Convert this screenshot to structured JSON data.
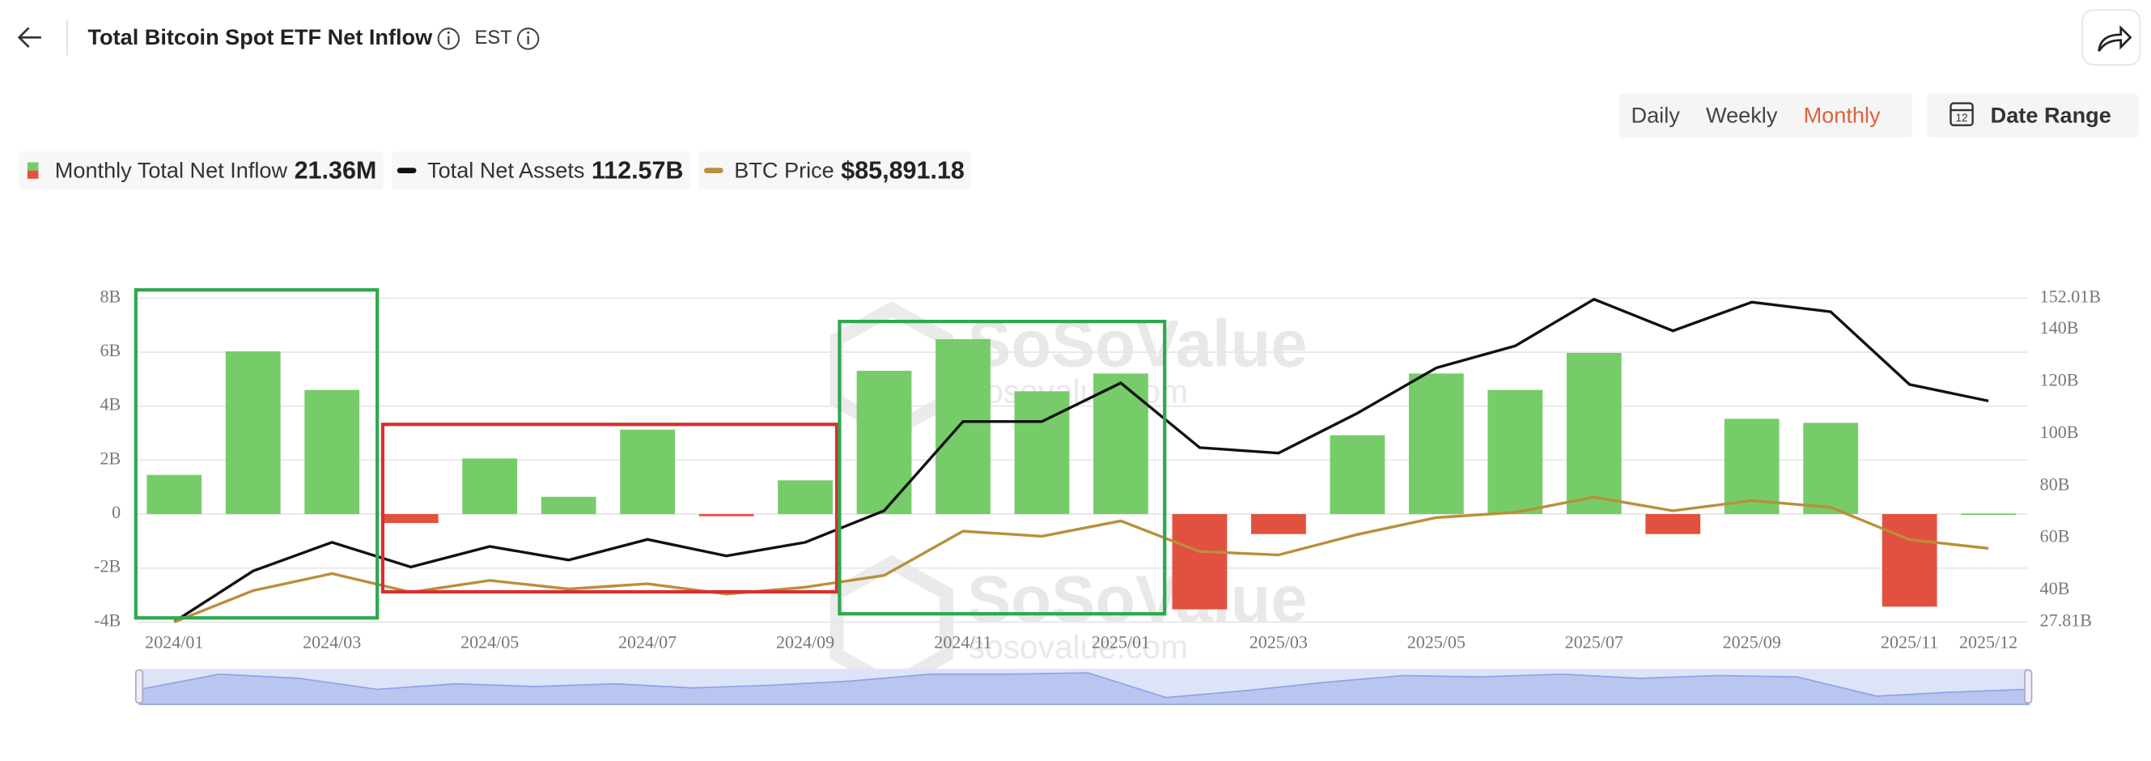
{
  "header": {
    "title": "Total Bitcoin Spot ETF Net Inflow",
    "timezone": "EST"
  },
  "controls": {
    "periods": [
      "Daily",
      "Weekly",
      "Monthly"
    ],
    "active_period": 2,
    "date_range": "Date Range"
  },
  "watermark": {
    "brand": "SoSoValue",
    "url": "sosovalue.com"
  },
  "chart_data": {
    "type": "combo",
    "categories": [
      "2024/01",
      null,
      "2024/03",
      null,
      "2024/05",
      null,
      "2024/07",
      null,
      "2024/09",
      null,
      "2024/11",
      null,
      "2025/01",
      null,
      "2025/03",
      null,
      "2025/05",
      null,
      "2025/07",
      null,
      "2025/09",
      null,
      "2025/11",
      "2025/12"
    ],
    "legend_values": [
      "21.36M",
      "112.57B",
      "$85,891.18"
    ],
    "series": [
      {
        "name": "Monthly Total Net Inflow",
        "type": "bar",
        "color": "#77cc6a",
        "negative_color": "#e2513f",
        "values": [
          1.45,
          6.03,
          4.6,
          -0.33,
          2.06,
          0.64,
          3.13,
          -0.08,
          1.25,
          5.31,
          6.48,
          4.55,
          5.21,
          -3.53,
          -0.74,
          2.92,
          5.21,
          4.6,
          5.97,
          -0.74,
          3.53,
          3.38,
          -3.43,
          0.02136
        ]
      },
      {
        "name": "Total Net Assets",
        "type": "line",
        "axis": "y2",
        "color": "#111111",
        "values": [
          27.9,
          47.4,
          58.4,
          48.9,
          56.8,
          51.6,
          59.5,
          53.2,
          58.4,
          70.5,
          104.7,
          104.7,
          119.5,
          94.7,
          92.6,
          107.9,
          125.3,
          133.7,
          151.6,
          139.5,
          150.5,
          146.8,
          118.9,
          112.57
        ]
      },
      {
        "name": "BTC Price",
        "type": "line",
        "axis": "hidden",
        "color": "#b8903a",
        "values": [
          42500,
          61000,
          71000,
          60000,
          67000,
          62000,
          65000,
          59000,
          63000,
          70000,
          96000,
          93000,
          102000,
          84000,
          82000,
          94000,
          104000,
          107000,
          116000,
          108000,
          114000,
          110000,
          91000,
          85891.18
        ]
      }
    ],
    "ylim": [
      -4,
      8
    ],
    "yticks": [
      {
        "value": -4,
        "label": "-4B"
      },
      {
        "value": -2,
        "label": "-2B"
      },
      0,
      {
        "value": 2,
        "label": "2B"
      },
      {
        "value": 4,
        "label": "4B"
      },
      {
        "value": 6,
        "label": "6B"
      },
      {
        "value": 8,
        "label": "8B"
      }
    ],
    "y2lim": [
      27.81,
      152.01
    ],
    "y2ticks": [
      {
        "value": 27.81,
        "label": "27.81B"
      },
      {
        "value": 40,
        "label": "40B"
      },
      {
        "value": 60,
        "label": "60B"
      },
      {
        "value": 80,
        "label": "80B"
      },
      {
        "value": 100,
        "label": "100B"
      },
      {
        "value": 120,
        "label": "120B"
      },
      {
        "value": 140,
        "label": "140B"
      },
      {
        "value": 152.01,
        "label": "152.01B"
      }
    ],
    "grid": true
  }
}
